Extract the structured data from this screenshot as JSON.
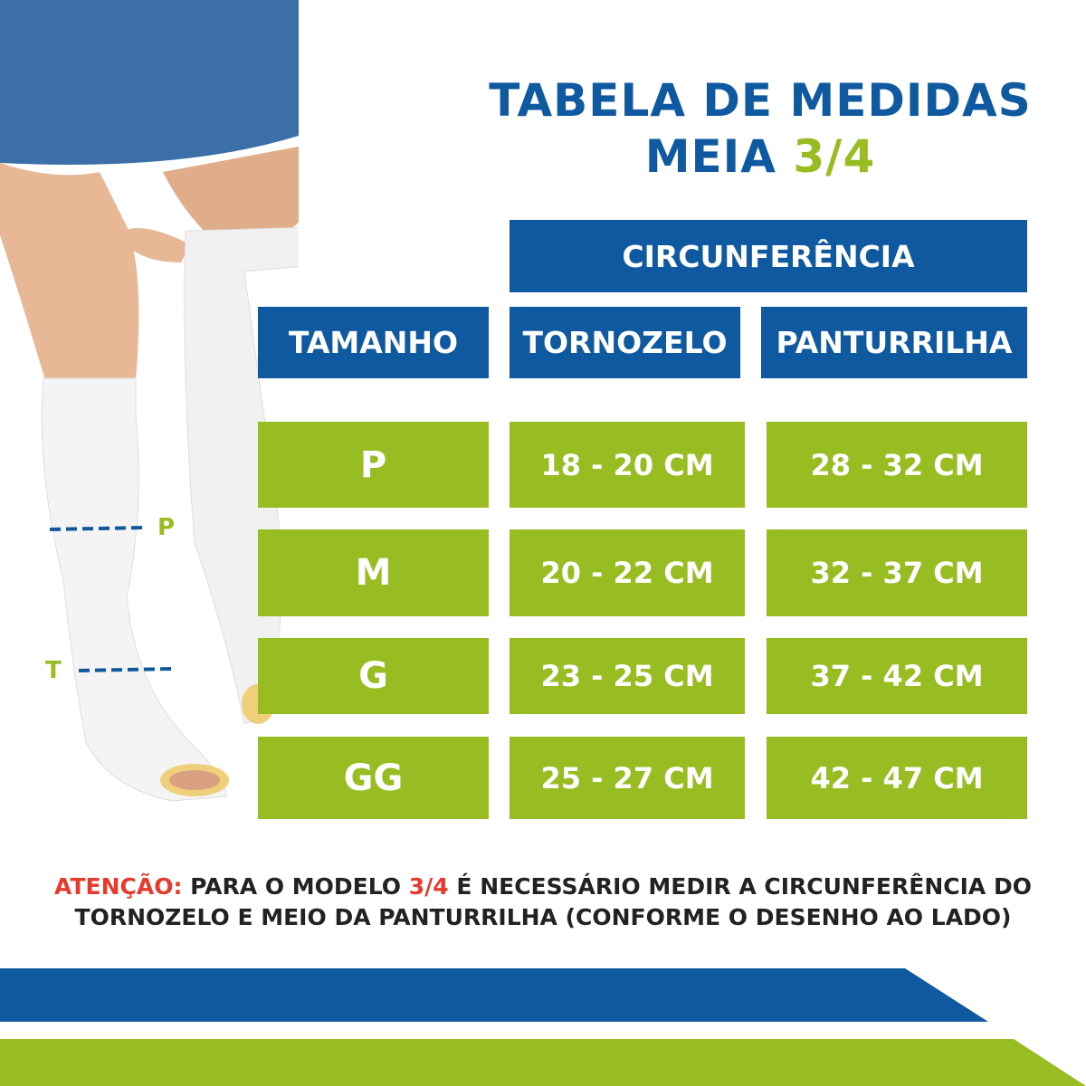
{
  "title": {
    "line1": "TABELA DE MEDIDAS",
    "line2_prefix": "MEIA",
    "line2_highlight": "3/4"
  },
  "table": {
    "group_header": "CIRCUNFERÊNCIA",
    "headers": [
      "TAMANHO",
      "TORNOZELO",
      "PANTURRILHA"
    ],
    "rows": [
      {
        "size": "P",
        "ankle": "18 - 20 CM",
        "calf": "28 - 32 CM"
      },
      {
        "size": "M",
        "ankle": "20 - 22 CM",
        "calf": "32 - 37 CM"
      },
      {
        "size": "G",
        "ankle": "23 - 25 CM",
        "calf": "37 - 42 CM"
      },
      {
        "size": "GG",
        "ankle": "25 - 27 CM",
        "calf": "42 - 47 CM"
      }
    ]
  },
  "illustration": {
    "calf_marker": "P",
    "ankle_marker": "T"
  },
  "note": {
    "label": "ATENÇÃO:",
    "text1": "PARA O MODELO",
    "highlight": "3/4",
    "text2": "É NECESSÁRIO MEDIR A CIRCUNFERÊNCIA DO",
    "line2": "TORNOZELO E MEIO DA PANTURRILHA (CONFORME O DESENHO AO LADO)"
  },
  "colors": {
    "blue": "#0e59a0",
    "green": "#97bd23",
    "red": "#e53a2e"
  }
}
